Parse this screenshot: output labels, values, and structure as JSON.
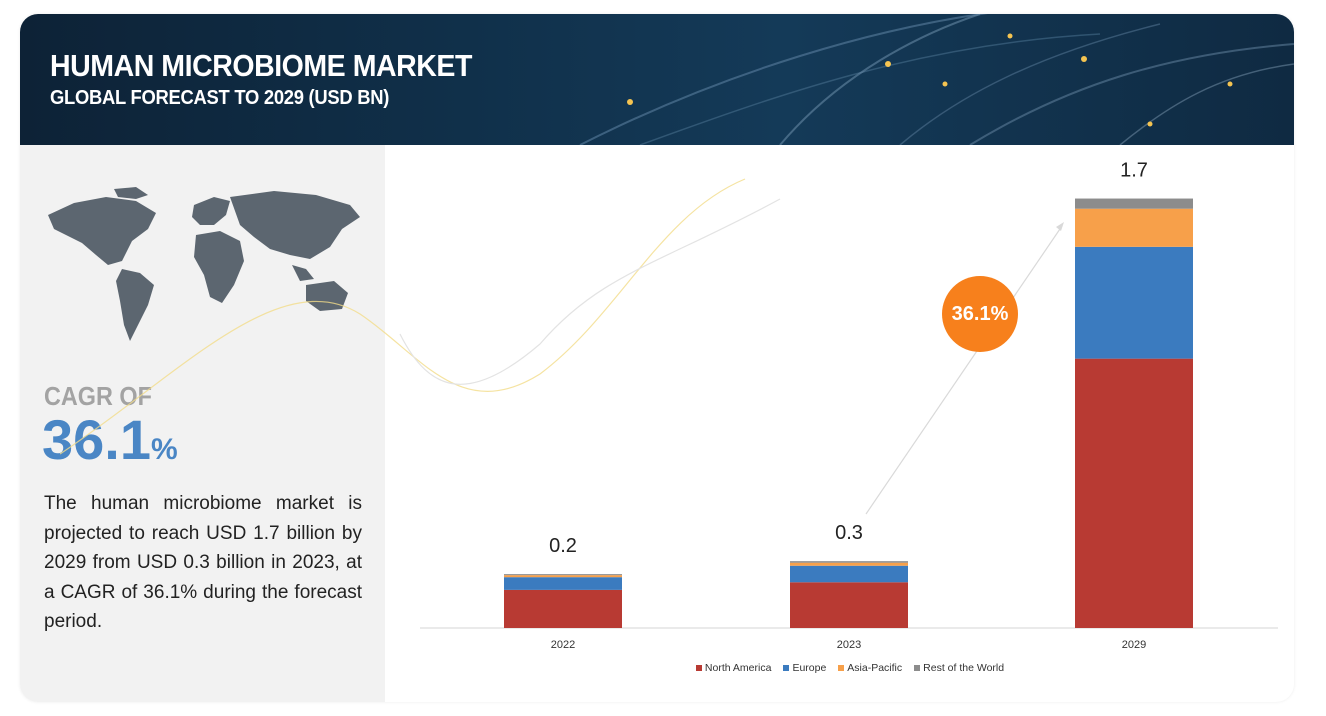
{
  "header": {
    "title": "HUMAN MICROBIOME MARKET",
    "subtitle": "GLOBAL FORECAST TO 2029 (USD BN)"
  },
  "left_panel": {
    "cagr_label": "CAGR OF",
    "cagr_value": "36.1",
    "cagr_unit": "%",
    "description": "The human microbiome market is projected to reach USD 1.7 billion by 2029 from USD 0.3 billion in 2023, at a CAGR of 36.1% during the forecast period."
  },
  "chart_data": {
    "type": "bar",
    "stacked": true,
    "categories": [
      "2022",
      "2023",
      "2029"
    ],
    "totals": [
      "0.2",
      "0.3",
      "1.7"
    ],
    "series": [
      {
        "name": "North America",
        "color": "#b83a33",
        "values": [
          0.15,
          0.18,
          1.06
        ]
      },
      {
        "name": "Europe",
        "color": "#3b7bbf",
        "values": [
          0.05,
          0.065,
          0.44
        ]
      },
      {
        "name": "Asia-Pacific",
        "color": "#f7a04a",
        "values": [
          0.008,
          0.012,
          0.15
        ]
      },
      {
        "name": "Rest of the World",
        "color": "#8c8c8c",
        "values": [
          0.004,
          0.006,
          0.04
        ]
      }
    ],
    "annotation": "36.1%",
    "legend_position": "bottom",
    "grid": false,
    "ylim": [
      0,
      1.7
    ]
  }
}
